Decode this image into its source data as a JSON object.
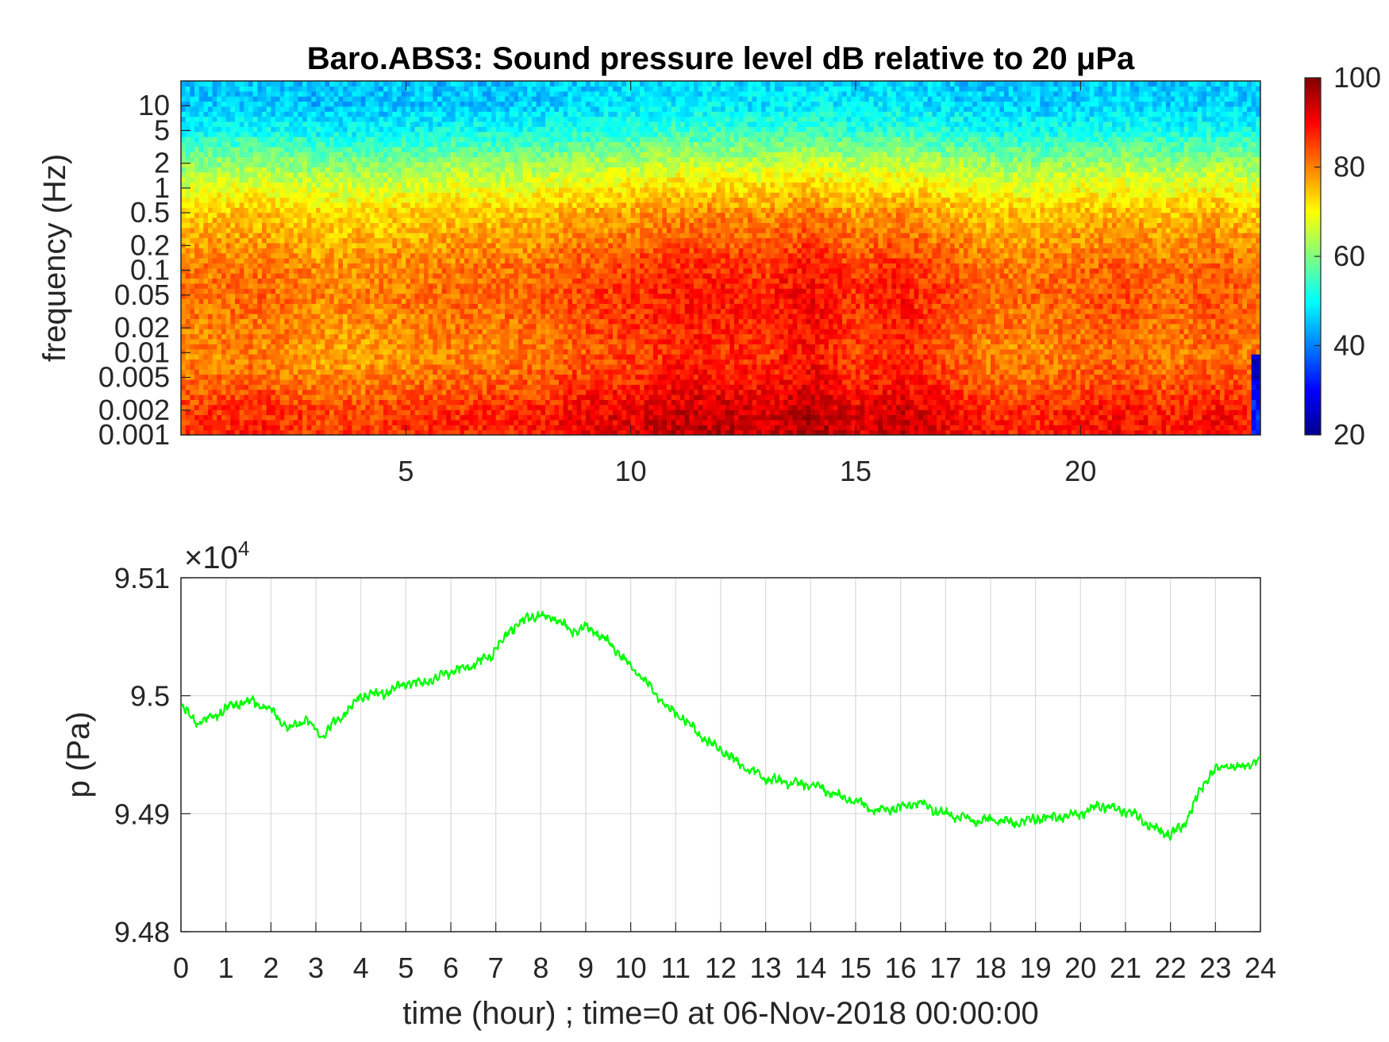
{
  "chart_data": [
    {
      "type": "heatmap",
      "title": "Baro.ABS3: Sound pressure level dB relative to 20 μPa",
      "xlabel": "",
      "ylabel": "frequency (Hz)",
      "x_ticks": [
        5,
        10,
        15,
        20
      ],
      "xlim": [
        0,
        24
      ],
      "y_scale": "log",
      "y_ticks": [
        0.001,
        0.002,
        0.005,
        0.01,
        0.02,
        0.05,
        0.1,
        0.2,
        0.5,
        1,
        2,
        5,
        10
      ],
      "y_tick_labels": [
        "0.001",
        "0.002",
        "0.005",
        "0.01",
        "0.02",
        "0.05",
        "0.1",
        "0.2",
        "0.5",
        "1",
        "2",
        "5",
        "10"
      ],
      "ylim": [
        0.001,
        20
      ],
      "colormap": "jet",
      "colorbar": {
        "ticks": [
          20,
          40,
          60,
          80,
          100
        ],
        "clim": [
          20,
          100
        ]
      },
      "level_profile": {
        "freq_hz": [
          0.001,
          0.002,
          0.005,
          0.01,
          0.02,
          0.05,
          0.1,
          0.2,
          0.5,
          1,
          2,
          5,
          10,
          20
        ],
        "db": [
          90,
          89,
          84,
          82,
          83,
          84,
          83,
          80,
          76,
          70,
          63,
          52,
          47,
          46
        ]
      },
      "time_intensity": {
        "hour": [
          0,
          1,
          2,
          3,
          4,
          5,
          6,
          7,
          8,
          9,
          10,
          11,
          12,
          13,
          14,
          15,
          16,
          17,
          18,
          19,
          20,
          21,
          22,
          23,
          24
        ],
        "offset_db": [
          -3,
          -2,
          -2,
          -4,
          -4,
          -3,
          -2,
          -2,
          -1,
          1,
          2,
          4,
          4,
          3,
          6,
          2,
          4,
          1,
          -2,
          -2,
          -1,
          0,
          -2,
          0,
          -2
        ]
      }
    },
    {
      "type": "line",
      "title": "",
      "xlabel": "time (hour) ; time=0 at 06-Nov-2018 00:00:00",
      "ylabel": "p (Pa)",
      "y_exponent_label": "×10",
      "y_exponent_power": "4",
      "xlim": [
        0,
        24
      ],
      "ylim": [
        94800,
        95100
      ],
      "x_ticks": [
        0,
        1,
        2,
        3,
        4,
        5,
        6,
        7,
        8,
        9,
        10,
        11,
        12,
        13,
        14,
        15,
        16,
        17,
        18,
        19,
        20,
        21,
        22,
        23,
        24
      ],
      "y_ticks": [
        94800,
        94900,
        95000,
        95100
      ],
      "y_tick_labels": [
        "9.48",
        "9.49",
        "9.5",
        "9.51"
      ],
      "grid": true,
      "series": [
        {
          "color": "#00ff00",
          "x": [
            0,
            0.4,
            0.8,
            1.2,
            1.6,
            2.0,
            2.4,
            2.8,
            3.1,
            3.5,
            4.0,
            4.5,
            5.0,
            5.5,
            6.0,
            6.5,
            6.9,
            7.3,
            7.8,
            8.3,
            8.7,
            9.0,
            9.3,
            9.7,
            10.0,
            10.4,
            10.8,
            11.2,
            11.6,
            12.0,
            12.5,
            13.0,
            13.5,
            14.0,
            14.5,
            15.0,
            15.5,
            16.0,
            16.4,
            16.8,
            17.2,
            17.6,
            18.0,
            18.5,
            19.0,
            19.5,
            20.0,
            20.4,
            20.8,
            21.2,
            21.6,
            22.0,
            22.3,
            22.6,
            22.9,
            23.2,
            23.6,
            24.0
          ],
          "y": [
            94990,
            94977,
            94984,
            94993,
            94995,
            94988,
            94972,
            94980,
            94966,
            94980,
            95000,
            95002,
            95010,
            95012,
            95020,
            95026,
            95034,
            95055,
            95068,
            95066,
            95055,
            95058,
            95052,
            95038,
            95025,
            95010,
            94990,
            94980,
            94964,
            94955,
            94940,
            94930,
            94926,
            94925,
            94917,
            94910,
            94902,
            94905,
            94910,
            94902,
            94898,
            94894,
            94895,
            94892,
            94896,
            94897,
            94900,
            94907,
            94903,
            94900,
            94888,
            94882,
            94890,
            94915,
            94935,
            94940,
            94940,
            94945
          ]
        }
      ]
    }
  ]
}
